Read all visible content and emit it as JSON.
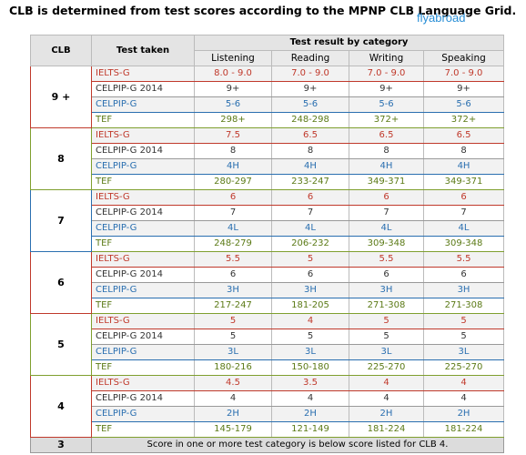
{
  "title": "CLB is determined from test scores according to the MPNP CLB Language Grid.",
  "logo": "flyabroad",
  "table": {
    "headers": {
      "clb": "CLB",
      "test_taken": "Test taken",
      "result": "Test result by category"
    },
    "categories": [
      "Listening",
      "Reading",
      "Writing",
      "Speaking"
    ],
    "groups": [
      {
        "clb": "9 +",
        "rows": [
          {
            "test": "IELTS-G",
            "scores": [
              "8.0 - 9.0",
              "7.0 - 9.0",
              "7.0 - 9.0",
              "7.0 - 9.0"
            ]
          },
          {
            "test": "CELPIP-G 2014",
            "scores": [
              "9+",
              "9+",
              "9+",
              "9+"
            ]
          },
          {
            "test": "CELPIP-G",
            "scores": [
              "5-6",
              "5-6",
              "5-6",
              "5-6"
            ]
          },
          {
            "test": "TEF",
            "scores": [
              "298+",
              "248-298",
              "372+",
              "372+"
            ]
          }
        ]
      },
      {
        "clb": "8",
        "rows": [
          {
            "test": "IELTS-G",
            "scores": [
              "7.5",
              "6.5",
              "6.5",
              "6.5"
            ]
          },
          {
            "test": "CELPIP-G 2014",
            "scores": [
              "8",
              "8",
              "8",
              "8"
            ]
          },
          {
            "test": "CELPIP-G",
            "scores": [
              "4H",
              "4H",
              "4H",
              "4H"
            ]
          },
          {
            "test": "TEF",
            "scores": [
              "280-297",
              "233-247",
              "349-371",
              "349-371"
            ]
          }
        ]
      },
      {
        "clb": "7",
        "rows": [
          {
            "test": "IELTS-G",
            "scores": [
              "6",
              "6",
              "6",
              "6"
            ]
          },
          {
            "test": "CELPIP-G 2014",
            "scores": [
              "7",
              "7",
              "7",
              "7"
            ]
          },
          {
            "test": "CELPIP-G",
            "scores": [
              "4L",
              "4L",
              "4L",
              "4L"
            ]
          },
          {
            "test": "TEF",
            "scores": [
              "248-279",
              "206-232",
              "309-348",
              "309-348"
            ]
          }
        ]
      },
      {
        "clb": "6",
        "rows": [
          {
            "test": "IELTS-G",
            "scores": [
              "5.5",
              "5",
              "5.5",
              "5.5"
            ]
          },
          {
            "test": "CELPIP-G 2014",
            "scores": [
              "6",
              "6",
              "6",
              "6"
            ]
          },
          {
            "test": "CELPIP-G",
            "scores": [
              "3H",
              "3H",
              "3H",
              "3H"
            ]
          },
          {
            "test": "TEF",
            "scores": [
              "217-247",
              "181-205",
              "271-308",
              "271-308"
            ]
          }
        ]
      },
      {
        "clb": "5",
        "rows": [
          {
            "test": "IELTS-G",
            "scores": [
              "5",
              "4",
              "5",
              "5"
            ]
          },
          {
            "test": "CELPIP-G 2014",
            "scores": [
              "5",
              "5",
              "5",
              "5"
            ]
          },
          {
            "test": "CELPIP-G",
            "scores": [
              "3L",
              "3L",
              "3L",
              "3L"
            ]
          },
          {
            "test": "TEF",
            "scores": [
              "180-216",
              "150-180",
              "225-270",
              "225-270"
            ]
          }
        ]
      },
      {
        "clb": "4",
        "rows": [
          {
            "test": "IELTS-G",
            "scores": [
              "4.5",
              "3.5",
              "4",
              "4"
            ]
          },
          {
            "test": "CELPIP-G 2014",
            "scores": [
              "4",
              "4",
              "4",
              "4"
            ]
          },
          {
            "test": "CELPIP-G",
            "scores": [
              "2H",
              "2H",
              "2H",
              "2H"
            ]
          },
          {
            "test": "TEF",
            "scores": [
              "145-179",
              "121-149",
              "181-224",
              "181-224"
            ]
          }
        ]
      }
    ],
    "footer": {
      "clb": "3",
      "note": "Score in one or more test category is below score listed for CLB 4."
    }
  }
}
